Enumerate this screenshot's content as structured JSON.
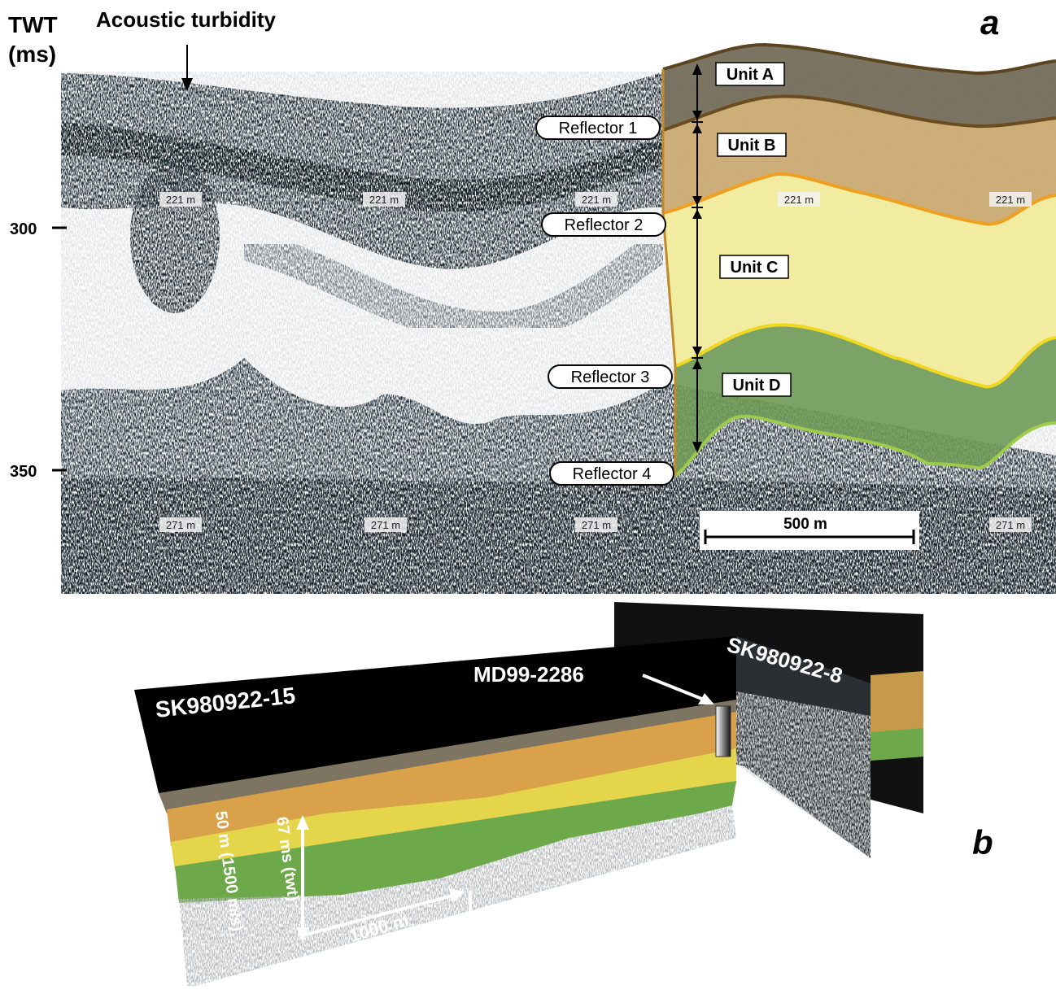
{
  "panel_a": {
    "label": "a",
    "axis_title": [
      "TWT",
      "(ms)"
    ],
    "ticks": [
      300,
      350
    ],
    "annotation": "Acoustic turbidity",
    "depth_labels_upper": [
      "221 m",
      "221 m",
      "221 m",
      "221 m",
      "221 m"
    ],
    "depth_labels_lower": [
      "271 m",
      "271 m",
      "271 m",
      "271 m"
    ],
    "reflectors": [
      "Reflector 1",
      "Reflector 2",
      "Reflector 3",
      "Reflector 4"
    ],
    "units": [
      "Unit A",
      "Unit B",
      "Unit C",
      "Unit D"
    ],
    "scale_bar": "500 m"
  },
  "panel_b": {
    "label": "b",
    "profiles": [
      "SK980922-15",
      "SK980922-8"
    ],
    "core": "MD99-2286",
    "vertical_scale": [
      "67 ms (twt)",
      "50 m (1500 m/s)"
    ],
    "horizontal_scale": "1000 m"
  }
}
